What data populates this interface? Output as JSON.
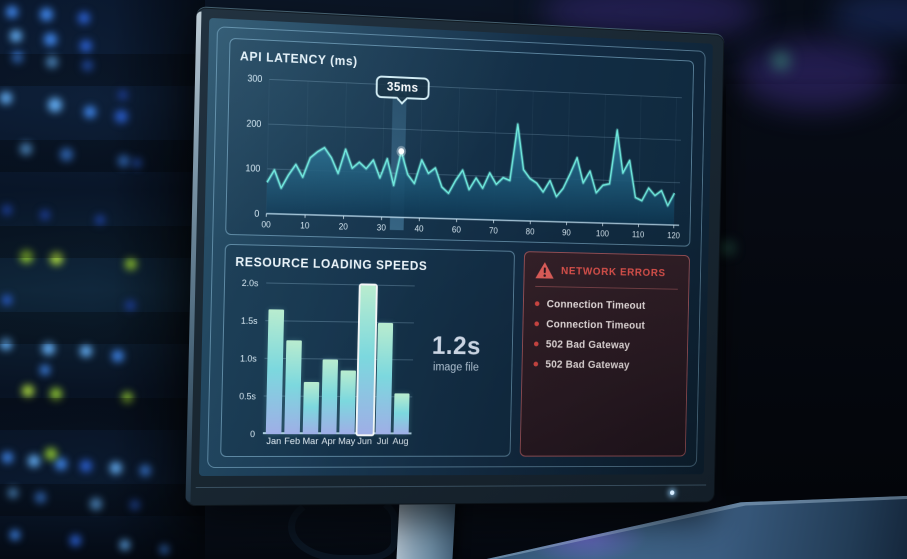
{
  "colors": {
    "line": "#6fe8dc",
    "line_glow": "rgba(111,232,220,0.30)",
    "area_top": "#2e84a8",
    "area_bottom": "#0e3652",
    "band": "rgba(120,200,245,0.32)",
    "bar_top": "#b9eccf",
    "bar_mid": "#7cd8de",
    "bar_bottom": "#9faee6",
    "error_accent": "#e4554f",
    "grid": "rgba(170,210,235,0.28)",
    "axis_text": "#d8e8f2"
  },
  "chart_data": [
    {
      "type": "line",
      "title": "API LATENCY (ms)",
      "ylim": [
        0,
        300
      ],
      "y_ticks": [
        300,
        200,
        100,
        0
      ],
      "x_tick_labels": [
        "00",
        "10",
        "20",
        "30",
        "40",
        "60",
        "70",
        "80",
        "90",
        "100",
        "110",
        "120"
      ],
      "x": [
        0,
        2,
        4,
        6,
        8,
        10,
        12,
        14,
        16,
        18,
        20,
        22,
        24,
        26,
        28,
        30,
        32,
        34,
        36,
        38,
        40,
        42,
        44,
        46,
        48,
        50,
        52,
        54,
        56,
        58,
        60,
        62,
        64,
        66,
        68,
        70,
        72,
        74,
        76,
        78,
        80,
        82,
        84,
        86,
        88,
        90,
        92,
        94,
        96,
        98,
        100,
        102,
        104,
        106,
        108,
        110,
        112,
        114,
        116,
        118,
        120
      ],
      "y": [
        70,
        98,
        58,
        88,
        112,
        84,
        128,
        142,
        152,
        130,
        95,
        150,
        108,
        122,
        108,
        128,
        88,
        132,
        72,
        150,
        98,
        78,
        132,
        102,
        115,
        72,
        58,
        88,
        112,
        68,
        95,
        72,
        108,
        82,
        98,
        92,
        222,
        118,
        98,
        88,
        68,
        95,
        58,
        78,
        112,
        150,
        92,
        120,
        70,
        88,
        92,
        218,
        118,
        148,
        62,
        55,
        85,
        68,
        80,
        45,
        75
      ],
      "annotation": {
        "label": "35ms",
        "x": 38,
        "y": 150
      },
      "highlight_band": {
        "x": 38,
        "width": 4
      }
    },
    {
      "type": "bar",
      "title": "RESOURCE LOADING SPEEDS",
      "categories": [
        "Jan",
        "Feb",
        "Mar",
        "Apr",
        "May",
        "Jun",
        "Jul",
        "Aug"
      ],
      "values": [
        1.65,
        1.25,
        0.7,
        1.0,
        0.85,
        2.0,
        1.5,
        0.55
      ],
      "ylim": [
        0,
        2.1
      ],
      "y_tick_values": [
        2.0,
        1.5,
        1.0,
        0.5,
        0
      ],
      "y_tick_labels": [
        "2.0s",
        "1.5s",
        "1.0s",
        "0.5s",
        "0"
      ],
      "highlight_index": 5,
      "callout": {
        "value": "1.2s",
        "label": "image file"
      }
    }
  ],
  "errors_panel": {
    "title": "NETWORK ERRORS",
    "items": [
      "Connection Timeout",
      "Connection Timeout",
      "502 Bad Gateway",
      "502 Bad Gateway"
    ]
  }
}
